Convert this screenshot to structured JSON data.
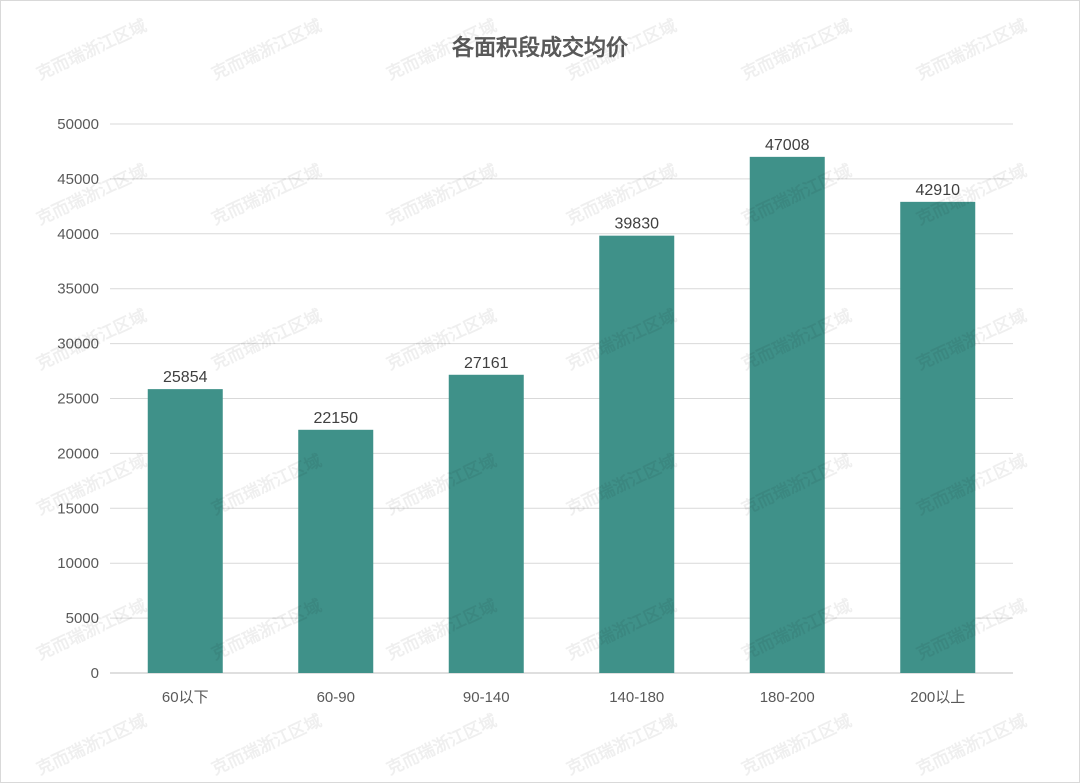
{
  "chart_data": {
    "type": "bar",
    "title": "各面积段成交均价",
    "categories": [
      "60以下",
      "60-90",
      "90-140",
      "140-180",
      "180-200",
      "200以上"
    ],
    "values": [
      25854,
      22150,
      27161,
      39830,
      47008,
      42910
    ],
    "ylim": [
      0,
      50000
    ],
    "yticks": [
      0,
      5000,
      10000,
      15000,
      20000,
      25000,
      30000,
      35000,
      40000,
      45000,
      50000
    ],
    "xlabel": "",
    "ylabel": "",
    "grid": true,
    "data_labels": true,
    "bar_color": "#3f9189"
  },
  "watermark": "克而瑞浙江区域"
}
